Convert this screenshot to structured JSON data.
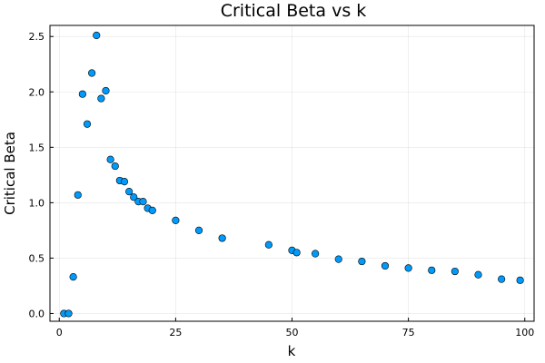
{
  "chart_data": {
    "type": "scatter",
    "title": "Critical Beta vs k",
    "xlabel": "k",
    "ylabel": "Critical Beta",
    "xlim": [
      -2,
      102
    ],
    "ylim": [
      -0.07,
      2.6
    ],
    "xticks": [
      0,
      25,
      50,
      75,
      100
    ],
    "yticks": [
      0.0,
      0.5,
      1.0,
      1.5,
      2.0,
      2.5
    ],
    "xtick_labels": [
      "0",
      "25",
      "50",
      "75",
      "100"
    ],
    "ytick_labels": [
      "0.0",
      "0.5",
      "1.0",
      "1.5",
      "2.0",
      "2.5"
    ],
    "grid": true,
    "legend": false,
    "marker_color": "#009AFA",
    "points": [
      {
        "x": 1,
        "y": 0.0
      },
      {
        "x": 2,
        "y": 0.0
      },
      {
        "x": 3,
        "y": 0.33
      },
      {
        "x": 4,
        "y": 1.07
      },
      {
        "x": 5,
        "y": 1.98
      },
      {
        "x": 6,
        "y": 1.71
      },
      {
        "x": 7,
        "y": 2.17
      },
      {
        "x": 8,
        "y": 2.51
      },
      {
        "x": 9,
        "y": 1.94
      },
      {
        "x": 10,
        "y": 2.01
      },
      {
        "x": 11,
        "y": 1.39
      },
      {
        "x": 12,
        "y": 1.33
      },
      {
        "x": 13,
        "y": 1.2
      },
      {
        "x": 14,
        "y": 1.19
      },
      {
        "x": 15,
        "y": 1.1
      },
      {
        "x": 16,
        "y": 1.05
      },
      {
        "x": 17,
        "y": 1.01
      },
      {
        "x": 18,
        "y": 1.01
      },
      {
        "x": 19,
        "y": 0.95
      },
      {
        "x": 20,
        "y": 0.93
      },
      {
        "x": 25,
        "y": 0.84
      },
      {
        "x": 30,
        "y": 0.75
      },
      {
        "x": 35,
        "y": 0.68
      },
      {
        "x": 45,
        "y": 0.62
      },
      {
        "x": 50,
        "y": 0.57
      },
      {
        "x": 51,
        "y": 0.55
      },
      {
        "x": 55,
        "y": 0.54
      },
      {
        "x": 60,
        "y": 0.49
      },
      {
        "x": 65,
        "y": 0.47
      },
      {
        "x": 70,
        "y": 0.43
      },
      {
        "x": 75,
        "y": 0.41
      },
      {
        "x": 80,
        "y": 0.39
      },
      {
        "x": 85,
        "y": 0.38
      },
      {
        "x": 90,
        "y": 0.35
      },
      {
        "x": 95,
        "y": 0.31
      },
      {
        "x": 99,
        "y": 0.3
      }
    ]
  }
}
